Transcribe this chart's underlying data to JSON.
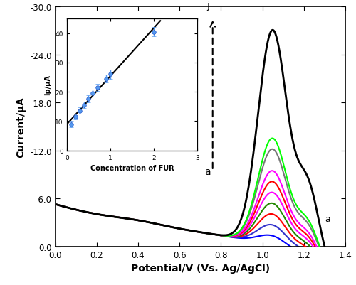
{
  "xlabel": "Potential/V (Vs. Ag/AgCl)",
  "ylabel": "Current/μA",
  "xlim": [
    0.0,
    1.4
  ],
  "ylim": [
    -30.0,
    0.0
  ],
  "yticks": [
    -30.0,
    -24.0,
    -18.0,
    -12.0,
    -6.0,
    0.0
  ],
  "xticks": [
    0.0,
    0.2,
    0.4,
    0.6,
    0.8,
    1.0,
    1.2,
    1.4
  ],
  "concentrations": [
    0.1,
    0.2,
    0.3,
    0.4,
    0.5,
    0.6,
    0.7,
    0.9,
    1.0,
    2.0
  ],
  "colors": [
    "blue",
    "#3333cc",
    "red",
    "#228800",
    "magenta",
    "red",
    "magenta",
    "#777777",
    "lime",
    "black"
  ],
  "inset": {
    "xlim": [
      0,
      3
    ],
    "ylim": [
      0,
      45
    ],
    "xlabel": "Concentration of FUR",
    "ylabel": "Ip/μA",
    "xticks": [
      0,
      1,
      2,
      3
    ],
    "yticks": [
      0,
      10,
      20,
      30,
      40
    ],
    "x_data": [
      0.1,
      0.2,
      0.3,
      0.4,
      0.5,
      0.6,
      0.7,
      0.9,
      1.0,
      2.0
    ],
    "y_data": [
      9.0,
      11.5,
      13.5,
      15.5,
      17.5,
      19.5,
      21.5,
      24.5,
      26.0,
      40.5
    ],
    "yerr": [
      1.0,
      1.0,
      1.1,
      1.1,
      1.2,
      1.2,
      1.3,
      1.4,
      1.5,
      1.6
    ]
  }
}
